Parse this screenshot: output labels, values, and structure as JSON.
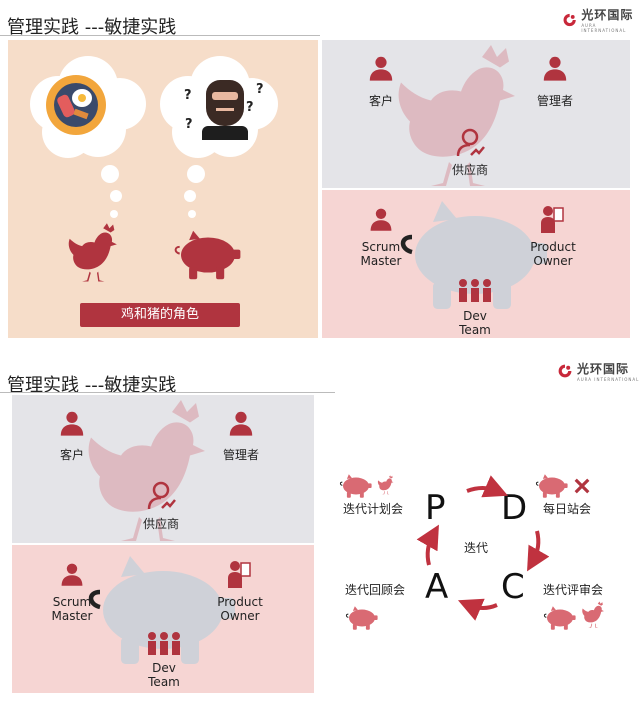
{
  "slide1": {
    "title": "管理实践 ---敏捷实践",
    "logo_text": "光环国际",
    "logo_sub": "AURA INTERNATIONAL",
    "banner": "鸡和猪的角色",
    "customer": "客户",
    "manager": "管理者",
    "supplier": "供应商",
    "scrum_master_l1": "Scrum",
    "scrum_master_l2": "Master",
    "product_owner_l1": "Product",
    "product_owner_l2": "Owner",
    "dev_team_l1": "Dev",
    "dev_team_l2": "Team",
    "question_mark": "?"
  },
  "slide2": {
    "title": "管理实践 ---敏捷实践",
    "logo_text": "光环国际",
    "logo_sub": "AURA INTERNATIONAL",
    "customer": "客户",
    "manager": "管理者",
    "supplier": "供应商",
    "scrum_master_l1": "Scrum",
    "scrum_master_l2": "Master",
    "product_owner_l1": "Product",
    "product_owner_l2": "Owner",
    "dev_team_l1": "Dev",
    "dev_team_l2": "Team",
    "pdca": {
      "p": "P",
      "d": "D",
      "c": "C",
      "a": "A"
    },
    "center": "迭代",
    "plan": "迭代计划会",
    "daily": "每日站会",
    "review": "迭代评审会",
    "retro": "迭代回顾会"
  },
  "colors": {
    "accent": "#b0343f",
    "pink_bg": "#f6d5d3",
    "gray_bg": "#e4e4e8",
    "peach_bg": "#f6ddc9",
    "pig_gray": "#cfd1d8"
  },
  "icons": [
    "logo-icon",
    "egg-bacon-icon",
    "thinking-man-icon",
    "rooster-icon",
    "piggy-bank-icon",
    "person-icon",
    "manager-icon",
    "supplier-icon",
    "team-icon",
    "product-owner-icon",
    "arrow-icon",
    "cross-icon"
  ]
}
